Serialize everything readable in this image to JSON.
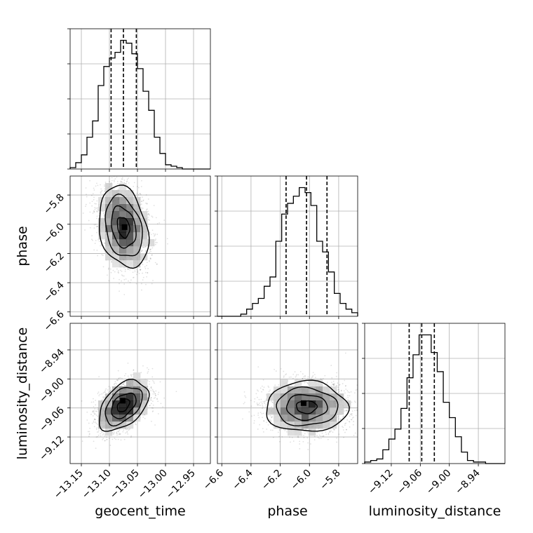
{
  "chart_data": {
    "type": "corner",
    "parameters": [
      "geocent_time",
      "phase",
      "luminosity_distance"
    ],
    "ranges": {
      "geocent_time": [
        -13.17,
        -12.92
      ],
      "phase": [
        -6.63,
        -5.67
      ],
      "luminosity_distance": [
        -9.175,
        -8.885
      ]
    },
    "ticks": {
      "geocent_time": [
        -13.15,
        -13.1,
        -13.05,
        -13.0,
        -12.95
      ],
      "phase": [
        -6.6,
        -6.4,
        -6.2,
        -6.0,
        -5.8
      ],
      "luminosity_distance": [
        -9.12,
        -9.06,
        -9.0,
        -8.94
      ]
    },
    "tick_labels": {
      "geocent_time": [
        "−13.15",
        "−13.10",
        "−13.05",
        "−13.00",
        "−12.95"
      ],
      "phase": [
        "−6.6",
        "−6.4",
        "−6.2",
        "−6.0",
        "−5.8"
      ],
      "luminosity_distance": [
        "−9.12",
        "−9.06",
        "−9.00",
        "−8.94"
      ]
    },
    "quantiles": {
      "geocent_time": [
        -13.097,
        -13.075,
        -13.052
      ],
      "phase": [
        -6.16,
        -6.02,
        -5.88
      ],
      "luminosity_distance": [
        -9.083,
        -9.057,
        -9.031
      ]
    },
    "histograms": {
      "geocent_time": {
        "edges": [
          -13.17,
          -13.16,
          -13.15,
          -13.14,
          -13.13,
          -13.12,
          -13.11,
          -13.1,
          -13.09,
          -13.08,
          -13.07,
          -13.06,
          -13.05,
          -13.04,
          -13.03,
          -13.02,
          -13.01,
          -13.0,
          -12.99,
          -12.98,
          -12.97,
          -12.96,
          -12.95,
          -12.94,
          -12.93,
          -12.92
        ],
        "counts": [
          2,
          9,
          20,
          45,
          68,
          118,
          145,
          157,
          165,
          182,
          178,
          163,
          142,
          110,
          83,
          45,
          22,
          6,
          4,
          2,
          0,
          0,
          0,
          0,
          0
        ]
      },
      "phase": {
        "edges": [
          -6.63,
          -6.59,
          -6.55,
          -6.51,
          -6.47,
          -6.43,
          -6.39,
          -6.35,
          -6.31,
          -6.27,
          -6.23,
          -6.19,
          -6.15,
          -6.11,
          -6.07,
          -6.03,
          -5.99,
          -5.95,
          -5.91,
          -5.87,
          -5.83,
          -5.79,
          -5.75,
          -5.71,
          -5.67
        ],
        "counts": [
          0,
          0,
          0,
          0,
          3,
          10,
          18,
          25,
          42,
          55,
          105,
          143,
          158,
          168,
          180,
          173,
          155,
          105,
          90,
          62,
          32,
          18,
          10,
          5
        ]
      },
      "luminosity_distance": {
        "edges": [
          -9.175,
          -9.1625,
          -9.15,
          -9.1375,
          -9.125,
          -9.1125,
          -9.1,
          -9.0875,
          -9.075,
          -9.0625,
          -9.05,
          -9.0375,
          -9.025,
          -9.0125,
          -9.0,
          -8.9875,
          -8.975,
          -8.9625,
          -8.95,
          -8.9375,
          -8.925,
          -8.9125,
          -8.9,
          -8.885
        ],
        "counts": [
          2,
          4,
          6,
          18,
          32,
          45,
          72,
          112,
          142,
          168,
          168,
          145,
          120,
          80,
          60,
          35,
          15,
          4,
          2,
          2,
          0,
          0,
          0
        ]
      }
    },
    "scatter_2d": [
      {
        "x": "geocent_time",
        "y": "phase",
        "x_mean": -13.075,
        "y_mean": -6.02,
        "x_sd": 0.022,
        "y_sd": 0.14,
        "corr": -0.25,
        "peak": [
          -13.073,
          -6.02
        ]
      },
      {
        "x": "geocent_time",
        "y": "luminosity_distance",
        "x_mean": -13.075,
        "y_mean": -9.055,
        "x_sd": 0.022,
        "y_sd": 0.026,
        "corr": 0.45,
        "peak": [
          -13.076,
          -9.045
        ]
      },
      {
        "x": "phase",
        "y": "luminosity_distance",
        "x_mean": -6.02,
        "y_mean": -9.058,
        "x_sd": 0.14,
        "y_sd": 0.026,
        "corr": 0.0,
        "peak": [
          -6.04,
          -9.05
        ]
      }
    ],
    "contour_levels_sigma": [
      0.5,
      1.0,
      1.5,
      2.0
    ],
    "grid": true,
    "colors": {
      "line": "#000000",
      "grid": "#b0b0b0",
      "points": "#000000"
    }
  }
}
